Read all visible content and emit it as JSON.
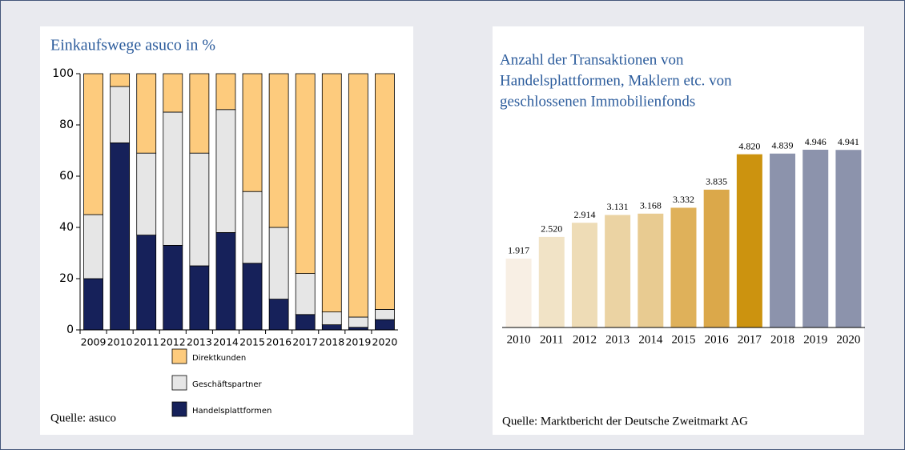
{
  "chart_data": [
    {
      "type": "stacked_bar",
      "title": "Einkaufswege asuco in %",
      "categories": [
        "2009",
        "2010",
        "2011",
        "2012",
        "2013",
        "2014",
        "2015",
        "2016",
        "2017",
        "2018",
        "2019",
        "2020"
      ],
      "series": [
        {
          "name": "Handelsplattformen",
          "color": "#16215a",
          "values": [
            20,
            73,
            37,
            33,
            25,
            38,
            26,
            12,
            6,
            2,
            1,
            4
          ]
        },
        {
          "name": "Geschäftspartner",
          "color": "#e6e6e6",
          "values": [
            25,
            22,
            32,
            52,
            44,
            48,
            28,
            28,
            16,
            5,
            4,
            4
          ]
        },
        {
          "name": "Direktkunden",
          "color": "#fdcb7d",
          "values": [
            55,
            5,
            31,
            15,
            31,
            14,
            46,
            60,
            78,
            93,
            95,
            92
          ]
        }
      ],
      "ylim": [
        0,
        100
      ],
      "yticks": [
        0,
        20,
        40,
        60,
        80,
        100
      ],
      "source": "Quelle: asuco"
    },
    {
      "type": "bar",
      "title": [
        "Anzahl der Transaktionen von",
        "Handelsplattformen, Maklern etc. von",
        "geschlossenen Immobilienfonds"
      ],
      "categories": [
        "2010",
        "2011",
        "2012",
        "2013",
        "2014",
        "2015",
        "2016",
        "2017",
        "2018",
        "2019",
        "2020"
      ],
      "values": [
        1917,
        2520,
        2914,
        3131,
        3168,
        3332,
        3835,
        4820,
        4839,
        4946,
        4941
      ],
      "value_labels": [
        "1.917",
        "2.520",
        "2.914",
        "3.131",
        "3.168",
        "3.332",
        "3.835",
        "4.820",
        "4.839",
        "4.946",
        "4.941"
      ],
      "colors": [
        "#f8efe4",
        "#f1e3c6",
        "#eedcb6",
        "#ebd3a3",
        "#e8cb91",
        "#dfb15a",
        "#dba84a",
        "#cc930f",
        "#8c93ac",
        "#8c93ac",
        "#8c93ac"
      ],
      "source": "Quelle: Marktbericht der Deutsche Zweitmarkt AG"
    }
  ]
}
